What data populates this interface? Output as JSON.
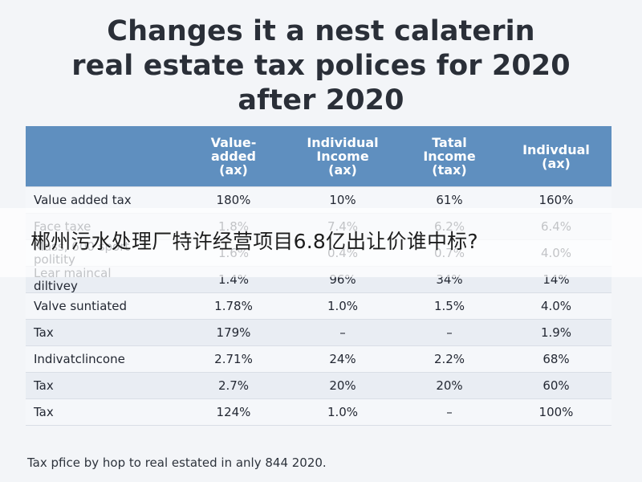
{
  "title": {
    "line1": "Changes it a nest calaterin",
    "line2": "real estate tax polices for 2020",
    "line3": "after 2020"
  },
  "table": {
    "headers": [
      "",
      "Value-\nadded\n(ax)",
      "Individual\nIncome\n(ax)",
      "Tatal\nIncome\n(tax)",
      "Indivdual\n(ax)"
    ],
    "rows": [
      [
        "Value added tax",
        "180%",
        "10%",
        "61%",
        "160%"
      ],
      [
        "Face taxe",
        "1.8%",
        "7.4%",
        "6.2%",
        "6.4%"
      ],
      [
        "Mass, 600 sport\npolitity",
        "1.6%",
        "0.4%",
        "0.7%",
        "4.0%"
      ],
      [
        "Lear maincal\ndiltivey",
        "1.4%",
        "96%",
        "34%",
        "14%"
      ],
      [
        "Valve suntiated",
        "1.78%",
        "1.0%",
        "1.5%",
        "4.0%"
      ],
      [
        "Tax",
        "179%",
        "–",
        "–",
        "1.9%"
      ],
      [
        "Indivatclincone",
        "2.71%",
        "24%",
        "2.2%",
        "68%"
      ],
      [
        "Tax",
        "2.7%",
        "20%",
        "20%",
        "60%"
      ],
      [
        "Tax",
        "124%",
        "1.0%",
        "–",
        "100%"
      ]
    ]
  },
  "footnote": "Tax pfice by hop to real estated in anly 844 2020.",
  "overlay_caption": "郴州污水处理厂特许经营项目6.8亿出让价谁中标?",
  "colors": {
    "header_bg": "#5f8fbf",
    "header_text": "#ffffff",
    "row_odd": "#f5f7fa",
    "row_even": "#e9edf3",
    "background": "#f3f5f8"
  }
}
